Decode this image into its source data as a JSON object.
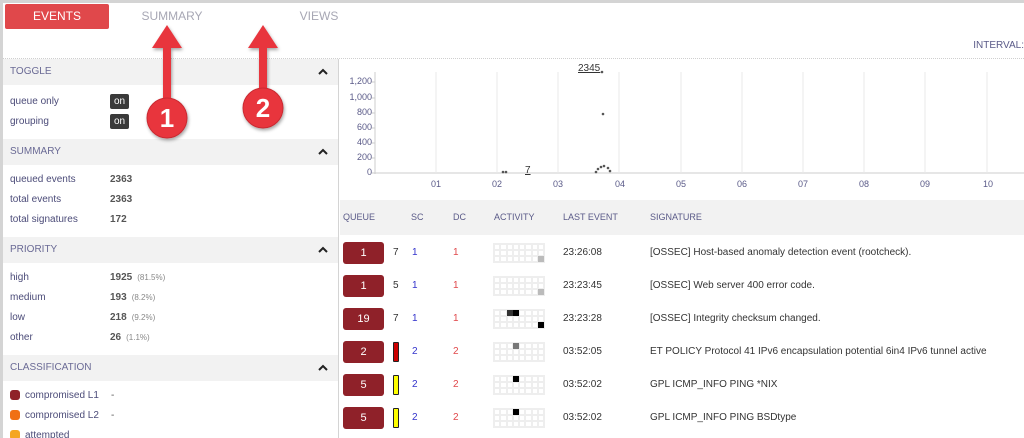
{
  "tabs": [
    {
      "label": "EVENTS",
      "active": true
    },
    {
      "label": "SUMMARY",
      "active": false
    },
    {
      "label": "VIEWS",
      "active": false
    }
  ],
  "interval_label": "INTERVAL:",
  "annotations": [
    {
      "number": "1",
      "target": "SUMMARY"
    },
    {
      "number": "2",
      "target": "VIEWS"
    }
  ],
  "sidebar": {
    "toggle": {
      "title": "TOGGLE",
      "items": [
        {
          "label": "queue only",
          "value": "on"
        },
        {
          "label": "grouping",
          "value": "on"
        }
      ]
    },
    "summary": {
      "title": "SUMMARY",
      "items": [
        {
          "label": "queued events",
          "value": "2363"
        },
        {
          "label": "total events",
          "value": "2363"
        },
        {
          "label": "total signatures",
          "value": "172"
        }
      ]
    },
    "priority": {
      "title": "PRIORITY",
      "items": [
        {
          "label": "high",
          "value": "1925",
          "pct": "(81.5%)"
        },
        {
          "label": "medium",
          "value": "193",
          "pct": "(8.2%)"
        },
        {
          "label": "low",
          "value": "218",
          "pct": "(9.2%)"
        },
        {
          "label": "other",
          "value": "26",
          "pct": "(1.1%)"
        }
      ]
    },
    "classification": {
      "title": "CLASSIFICATION",
      "items": [
        {
          "label": "compromised L1",
          "value": "-",
          "color": "#8f2129"
        },
        {
          "label": "compromised L2",
          "value": "-",
          "color": "#f07014"
        },
        {
          "label": "attempted",
          "value": "-",
          "color": "#f5a623"
        }
      ]
    }
  },
  "chart_data": {
    "type": "scatter",
    "title": "",
    "xlabel": "",
    "ylabel": "",
    "x_ticks": [
      "01",
      "02",
      "03",
      "04",
      "05",
      "06",
      "07",
      "08",
      "09",
      "10"
    ],
    "y_ticks": [
      "0",
      "200",
      "400",
      "600",
      "800",
      "1,000",
      "1,200"
    ],
    "ylim": [
      0,
      1300
    ],
    "annotations": [
      {
        "text": "2345",
        "x": "03.7"
      },
      {
        "text": "7",
        "x": "02.5"
      }
    ],
    "points": [
      {
        "x": 2.05,
        "y": 5
      },
      {
        "x": 2.1,
        "y": 5
      },
      {
        "x": 3.6,
        "y": 10
      },
      {
        "x": 3.65,
        "y": 60
      },
      {
        "x": 3.7,
        "y": 80
      },
      {
        "x": 3.72,
        "y": 1330
      },
      {
        "x": 3.73,
        "y": 780
      },
      {
        "x": 3.75,
        "y": 30
      },
      {
        "x": 3.8,
        "y": 50
      },
      {
        "x": 3.85,
        "y": 20
      }
    ],
    "grid": true
  },
  "table": {
    "headers": [
      "QUEUE",
      "SC",
      "DC",
      "ACTIVITY",
      "LAST EVENT",
      "SIGNATURE"
    ],
    "rows": [
      {
        "queue": "1",
        "count": "7",
        "sc": "1",
        "dc": "1",
        "last": "23:26:08",
        "sig": "[OSSEC] Host-based anomaly detection event (rootcheck).",
        "bar": null,
        "cells": [
          [
            2,
            7,
            "#bbb"
          ]
        ]
      },
      {
        "queue": "1",
        "count": "5",
        "sc": "1",
        "dc": "1",
        "last": "23:23:45",
        "sig": "[OSSEC] Web server 400 error code.",
        "bar": null,
        "cells": [
          [
            2,
            7,
            "#bbb"
          ]
        ]
      },
      {
        "queue": "19",
        "count": "7",
        "sc": "1",
        "dc": "1",
        "last": "23:23:28",
        "sig": "[OSSEC] Integrity checksum changed.",
        "bar": null,
        "cells": [
          [
            0,
            2,
            "#333"
          ],
          [
            0,
            3,
            "#000"
          ],
          [
            2,
            7,
            "#000"
          ]
        ]
      },
      {
        "queue": "2",
        "count": "",
        "sc": "2",
        "dc": "2",
        "last": "03:52:05",
        "sig": "ET POLICY Protocol 41 IPv6 encapsulation potential 6in4 IPv6 tunnel active",
        "bar": "#cc0000",
        "cells": [
          [
            0,
            3,
            "#777"
          ]
        ]
      },
      {
        "queue": "5",
        "count": "",
        "sc": "2",
        "dc": "2",
        "last": "03:52:02",
        "sig": "GPL ICMP_INFO PING *NIX",
        "bar": "#ffff00",
        "cells": [
          [
            0,
            3,
            "#000"
          ]
        ]
      },
      {
        "queue": "5",
        "count": "",
        "sc": "2",
        "dc": "2",
        "last": "03:52:02",
        "sig": "GPL ICMP_INFO PING BSDtype",
        "bar": "#ffff00",
        "cells": [
          [
            0,
            3,
            "#000"
          ]
        ]
      }
    ]
  }
}
